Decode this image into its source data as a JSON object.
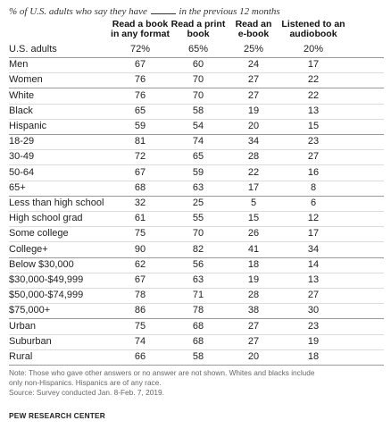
{
  "chart_data": {
    "type": "table",
    "subtitle_before": "% of U.S. adults who say they have",
    "subtitle_after": "in the previous 12 months",
    "columns": [
      [
        "Read a book",
        "in any format"
      ],
      [
        "Read a print",
        "book"
      ],
      [
        "Read an",
        "e-book"
      ],
      [
        "Listened to an",
        "audiobook"
      ]
    ],
    "rows": [
      {
        "label": "U.S. adults",
        "values": [
          "72%",
          "65%",
          "25%",
          "20%"
        ]
      },
      {
        "label": "Men",
        "values": [
          "67",
          "60",
          "24",
          "17"
        ]
      },
      {
        "label": "Women",
        "values": [
          "76",
          "70",
          "27",
          "22"
        ]
      },
      {
        "label": "White",
        "values": [
          "76",
          "70",
          "27",
          "22"
        ]
      },
      {
        "label": "Black",
        "values": [
          "65",
          "58",
          "19",
          "13"
        ]
      },
      {
        "label": "Hispanic",
        "values": [
          "59",
          "54",
          "20",
          "15"
        ]
      },
      {
        "label": "18-29",
        "values": [
          "81",
          "74",
          "34",
          "23"
        ]
      },
      {
        "label": "30-49",
        "values": [
          "72",
          "65",
          "28",
          "27"
        ]
      },
      {
        "label": "50-64",
        "values": [
          "67",
          "59",
          "22",
          "16"
        ]
      },
      {
        "label": "65+",
        "values": [
          "68",
          "63",
          "17",
          "8"
        ]
      },
      {
        "label": "Less than high school",
        "values": [
          "32",
          "25",
          "5",
          "6"
        ]
      },
      {
        "label": "High school grad",
        "values": [
          "61",
          "55",
          "15",
          "12"
        ]
      },
      {
        "label": "Some college",
        "values": [
          "75",
          "70",
          "26",
          "17"
        ]
      },
      {
        "label": "College+",
        "values": [
          "90",
          "82",
          "41",
          "34"
        ]
      },
      {
        "label": "Below $30,000",
        "values": [
          "62",
          "56",
          "18",
          "14"
        ]
      },
      {
        "label": "$30,000-$49,999",
        "values": [
          "67",
          "63",
          "19",
          "13"
        ]
      },
      {
        "label": "$50,000-$74,999",
        "values": [
          "78",
          "71",
          "28",
          "27"
        ]
      },
      {
        "label": "$75,000+",
        "values": [
          "86",
          "78",
          "38",
          "30"
        ]
      },
      {
        "label": "Urban",
        "values": [
          "75",
          "68",
          "27",
          "23"
        ]
      },
      {
        "label": "Suburban",
        "values": [
          "74",
          "68",
          "27",
          "19"
        ]
      },
      {
        "label": "Rural",
        "values": [
          "66",
          "58",
          "20",
          "18"
        ]
      }
    ],
    "group_end_rows": [
      0,
      2,
      5,
      9,
      13,
      17,
      20
    ],
    "notes": [
      "Note: Those who gave other answers or no answer are not shown. Whites and blacks include",
      "only non-Hispanics. Hispanics are of any race.",
      "Source: Survey conducted Jan. 8-Feb. 7, 2019."
    ],
    "source_org": "PEW RESEARCH CENTER"
  }
}
